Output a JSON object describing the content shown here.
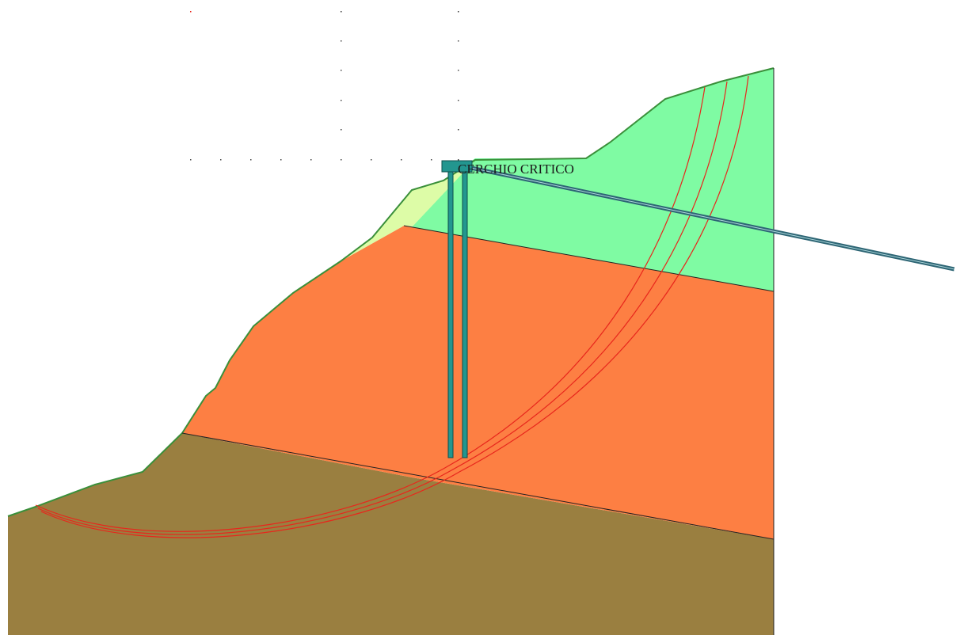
{
  "diagram": {
    "critical_circle_label": "CERCHIO CRITICO",
    "colors": {
      "layer_bottom": "#9a7f40",
      "layer_middle": "#fd7f43",
      "layer_top": "#7ffba3",
      "layer_fill_wedge": "#ddfca7",
      "slip_surface": "#e8261c",
      "structure": "#23968f",
      "tieback": "#2d6574",
      "grid_dot": "#444444"
    },
    "elements": {
      "layers": [
        "bottom-soil-layer",
        "middle-soil-layer",
        "top-soil-layer",
        "fill-wedge"
      ],
      "slip_surfaces": 3,
      "piles": 2,
      "anchors": 1
    }
  }
}
